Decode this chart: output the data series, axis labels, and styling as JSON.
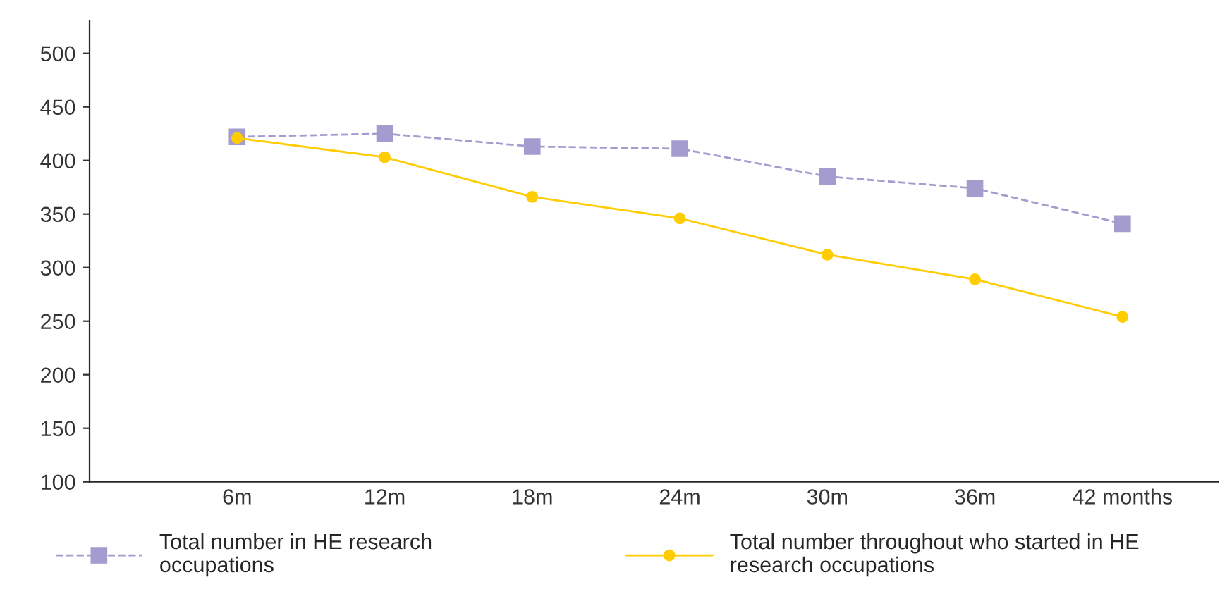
{
  "chart_data": {
    "type": "line",
    "categories": [
      "6m",
      "12m",
      "18m",
      "24m",
      "30m",
      "36m",
      "42 months"
    ],
    "series": [
      {
        "name": "Total number in HE research\noccupations",
        "color": "#a49ccf",
        "marker": "square",
        "line_style": "dashed",
        "values": [
          422,
          425,
          413,
          411,
          385,
          374,
          341
        ]
      },
      {
        "name": "Total number throughout who started in HE\nresearch occupations",
        "color": "#ffcc00",
        "marker": "circle",
        "line_style": "solid",
        "values": [
          421,
          403,
          366,
          346,
          312,
          289,
          254
        ]
      }
    ],
    "ylim": [
      100,
      530
    ],
    "yticks": [
      100,
      150,
      200,
      250,
      300,
      350,
      400,
      450,
      500
    ],
    "grid": false,
    "legend": "bottom"
  }
}
